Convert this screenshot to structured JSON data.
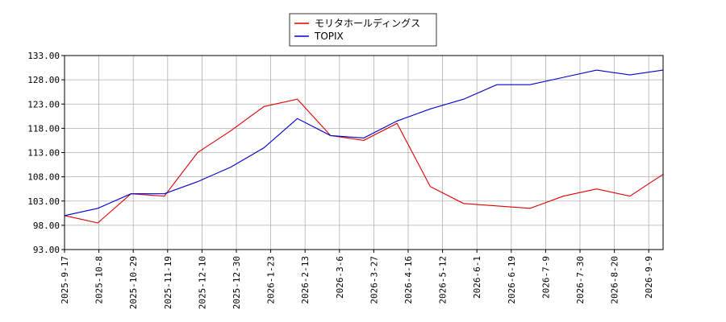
{
  "chart_data": {
    "type": "line",
    "title": "",
    "xlabel": "",
    "ylabel": "",
    "ylim": [
      93.0,
      133.0
    ],
    "yticks": [
      "93.00",
      "98.00",
      "103.00",
      "108.00",
      "113.00",
      "118.00",
      "123.00",
      "128.00",
      "133.00"
    ],
    "xticks": [
      "2025-9-17",
      "2025-10-8",
      "2025-10-29",
      "2025-11-19",
      "2025-12-10",
      "2025-12-30",
      "2026-1-23",
      "2026-2-13",
      "2026-3-6",
      "2026-3-27",
      "2026-4-16",
      "2026-5-12",
      "2026-6-1",
      "2026-6-19",
      "2026-7-9",
      "2026-7-30",
      "2026-8-20",
      "2026-9-9"
    ],
    "grid": true,
    "legend_position": "top-center",
    "x": [
      "2025-9-17",
      "2025-10-8",
      "2025-10-29",
      "2025-11-19",
      "2025-12-10",
      "2025-12-30",
      "2026-1-23",
      "2026-2-13",
      "2026-3-6",
      "2026-3-27",
      "2026-4-16",
      "2026-5-12",
      "2026-6-1",
      "2026-6-19",
      "2026-7-9",
      "2026-7-30",
      "2026-8-20",
      "2026-9-9",
      "2026-9-17"
    ],
    "series": [
      {
        "name": "モリタホールディングス",
        "color": "#dd0000",
        "values": [
          100.0,
          98.5,
          104.5,
          104.0,
          113.0,
          117.5,
          122.5,
          124.0,
          116.5,
          115.5,
          119.0,
          106.0,
          102.5,
          102.0,
          101.5,
          104.0,
          105.5,
          104.0,
          108.5
        ]
      },
      {
        "name": "TOPIX",
        "color": "#0000cc",
        "values": [
          100.0,
          101.5,
          104.5,
          104.5,
          107.0,
          110.0,
          114.0,
          120.0,
          116.5,
          116.0,
          119.5,
          122.0,
          124.0,
          127.0,
          127.0,
          128.5,
          130.0,
          129.0,
          130.0
        ]
      }
    ]
  }
}
